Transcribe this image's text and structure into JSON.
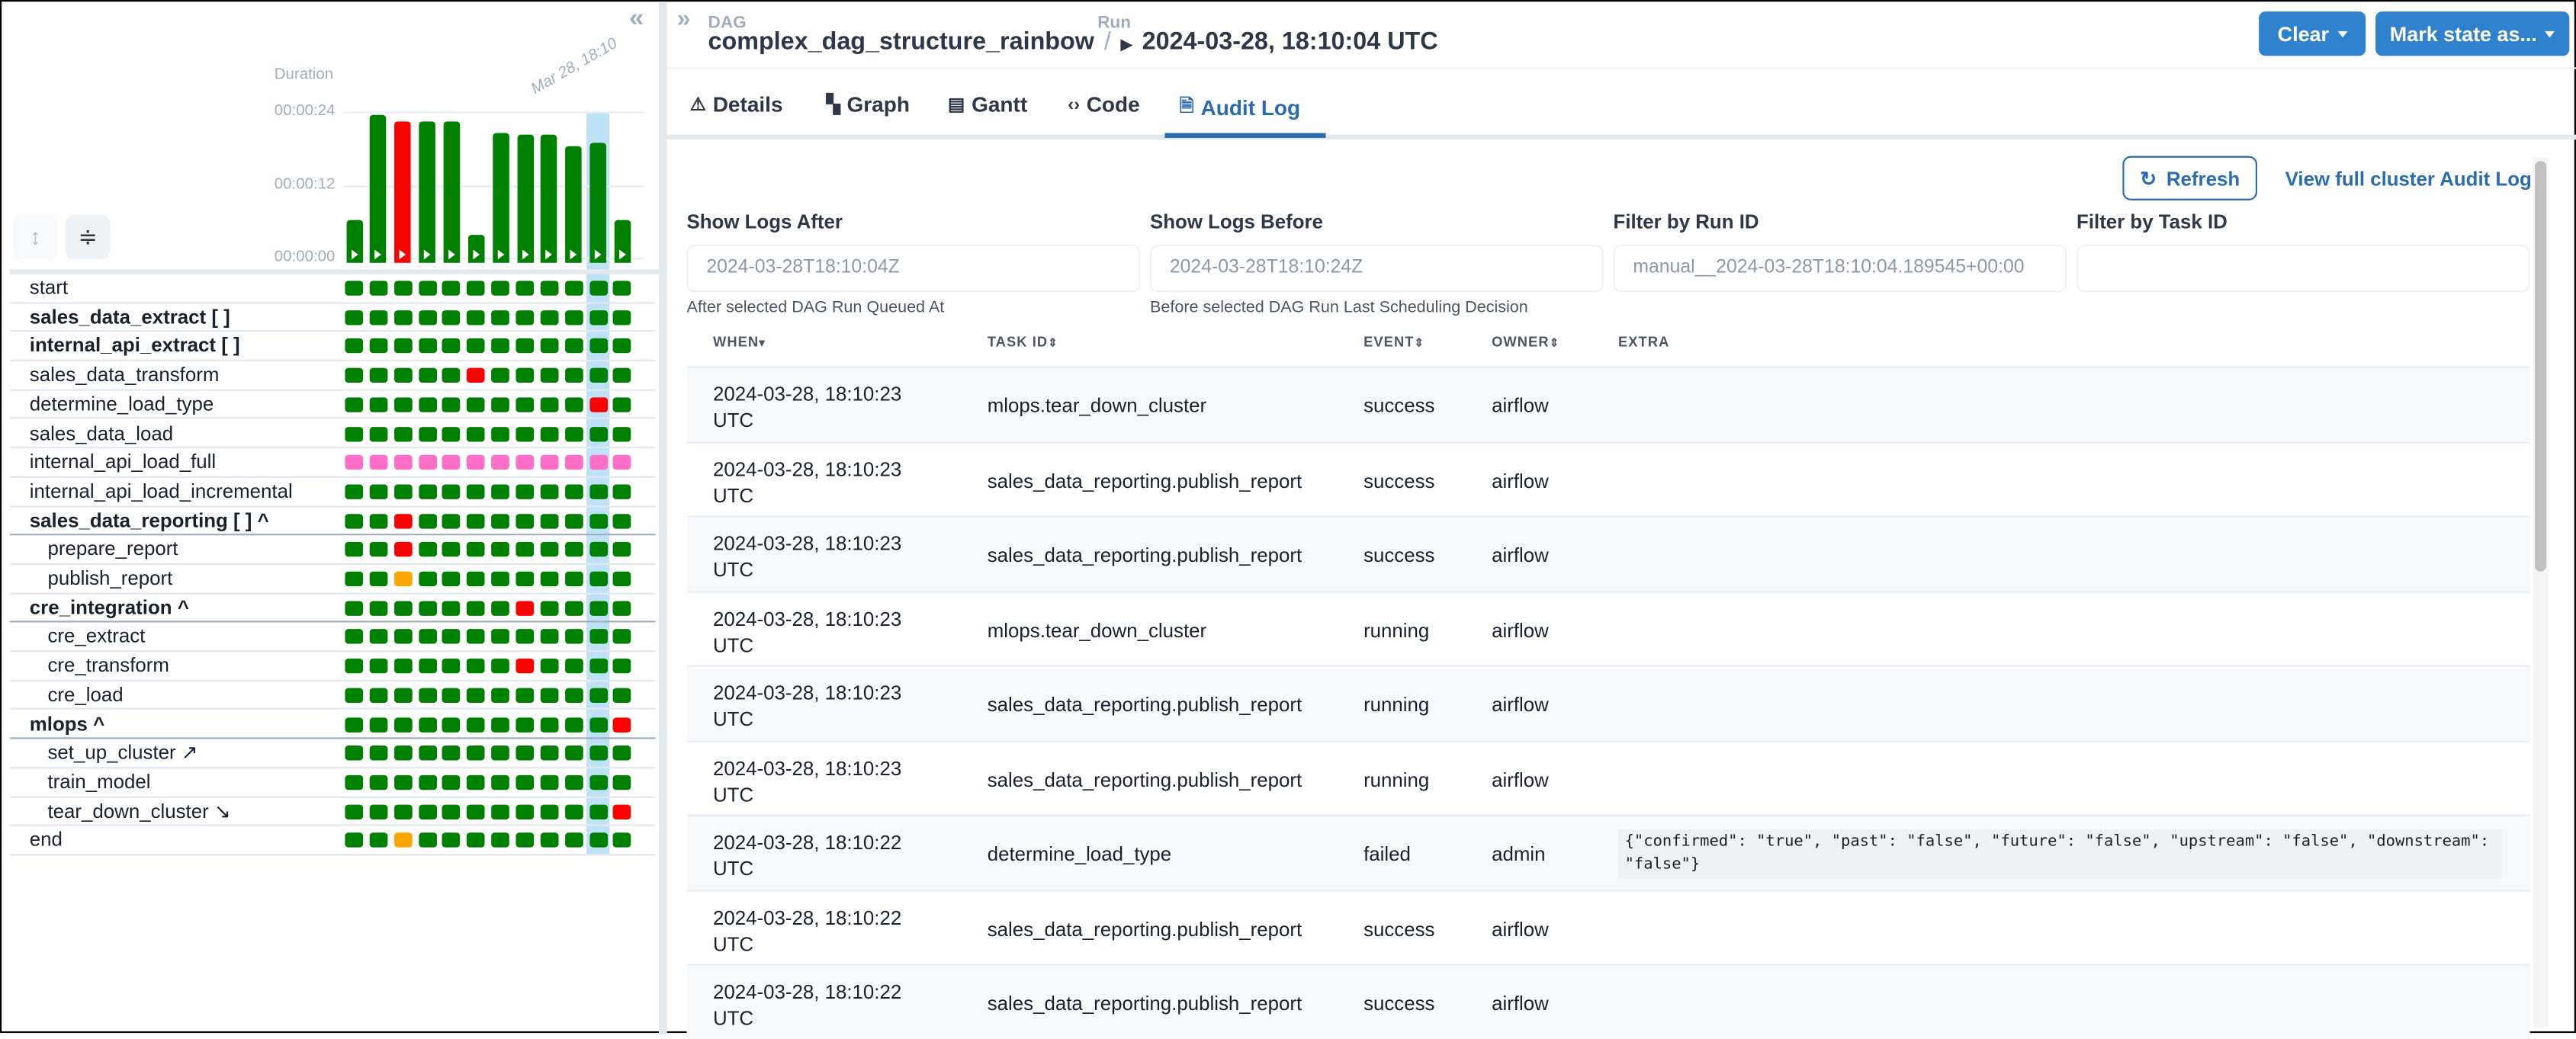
{
  "colors": {
    "success": "#008000",
    "failed": "#ff0000",
    "upstream_failed": "#ffa500",
    "skipped": "#ff6ec7",
    "accent": "#3182ce",
    "highlight": "#bee3f8"
  },
  "left_panel": {
    "collapse_icon": "double-chevron-left-icon",
    "chart_data": {
      "type": "bar",
      "ylabel": "Duration",
      "y_ticks": [
        "00:00:00",
        "00:00:12",
        "00:00:24"
      ],
      "ylim_seconds": [
        0,
        24
      ],
      "x_label_highlight": "Mar 28, 18:10",
      "values_seconds": [
        7,
        24.4,
        23.3,
        23.3,
        23.3,
        4.6,
        21.2,
        21.1,
        21,
        19.1,
        19.6,
        7
      ],
      "states": [
        "success",
        "success",
        "failed",
        "success",
        "success",
        "success",
        "success",
        "success",
        "success",
        "success",
        "success",
        "success"
      ],
      "selected_index": 10
    },
    "tasks": [
      {
        "label": "start",
        "kind": "task",
        "states": "GGGGGGGGGGGG"
      },
      {
        "label": "sales_data_extract [ ]",
        "kind": "group",
        "states": "GGGGGGGGGGGG"
      },
      {
        "label": "internal_api_extract [ ]",
        "kind": "group",
        "states": "GGGGGGGGGGGG"
      },
      {
        "label": "sales_data_transform",
        "kind": "task",
        "states": "GGGGGRGGGGGG"
      },
      {
        "label": "determine_load_type",
        "kind": "task",
        "states": "GGGGGGGGGGRG"
      },
      {
        "label": "sales_data_load",
        "kind": "task",
        "states": "GGGGGGGGGGGG"
      },
      {
        "label": "internal_api_load_full",
        "kind": "task",
        "states": "PPPPPPPPPPPP"
      },
      {
        "label": "internal_api_load_incremental",
        "kind": "task",
        "states": "GGGGGGGGGGGG"
      },
      {
        "label": "sales_data_reporting [ ] ^",
        "kind": "groupopen",
        "states": "GGRGGGGGGGGG"
      },
      {
        "label": "prepare_report",
        "kind": "child",
        "states": "GGRGGGGGGGGG"
      },
      {
        "label": "publish_report",
        "kind": "child",
        "states": "GGOGGGGGGGGG"
      },
      {
        "label": "cre_integration ^",
        "kind": "groupopen",
        "states": "GGGGGGGRGGGG"
      },
      {
        "label": "cre_extract",
        "kind": "child",
        "states": "GGGGGGGGGGGG"
      },
      {
        "label": "cre_transform",
        "kind": "child",
        "states": "GGGGGGGRGGGG"
      },
      {
        "label": "cre_load",
        "kind": "child",
        "states": "GGGGGGGGGGGG"
      },
      {
        "label": "mlops ^",
        "kind": "groupopen",
        "states": "GGGGGGGGGGGR"
      },
      {
        "label": "set_up_cluster ↗",
        "kind": "child",
        "states": "GGGGGGGGGGGG"
      },
      {
        "label": "train_model",
        "kind": "child",
        "states": "GGGGGGGGGGGG"
      },
      {
        "label": "tear_down_cluster ↘",
        "kind": "child",
        "states": "GGGGGGGGGGGR"
      },
      {
        "label": "end",
        "kind": "task",
        "states": "GGOGGGGGGGGG"
      }
    ]
  },
  "header": {
    "dag_label": "DAG",
    "dag_id": "complex_dag_structure_rainbow",
    "separator": "/",
    "run_label": "Run",
    "run_id": "2024-03-28, 18:10:04 UTC",
    "clear_button": "Clear",
    "mark_state_button": "Mark state as..."
  },
  "tabs": [
    {
      "label": "Details",
      "icon": "warning-triangle-icon"
    },
    {
      "label": "Graph",
      "icon": "graph-icon"
    },
    {
      "label": "Gantt",
      "icon": "gantt-icon"
    },
    {
      "label": "Code",
      "icon": "code-icon"
    },
    {
      "label": "Audit Log",
      "icon": "file-search-icon",
      "active": true
    }
  ],
  "audit": {
    "refresh_button": "Refresh",
    "full_log_link": "View full cluster Audit Log",
    "filters": [
      {
        "label": "Show Logs After",
        "placeholder": "2024-03-28T18:10:04Z",
        "help": "After selected DAG Run Queued At"
      },
      {
        "label": "Show Logs Before",
        "placeholder": "2024-03-28T18:10:24Z",
        "help": "Before selected DAG Run Last Scheduling Decision"
      },
      {
        "label": "Filter by Run ID",
        "placeholder": "manual__2024-03-28T18:10:04.189545+00:00",
        "help": ""
      },
      {
        "label": "Filter by Task ID",
        "placeholder": "",
        "help": ""
      }
    ],
    "columns": [
      "WHEN",
      "TASK ID",
      "EVENT",
      "OWNER",
      "EXTRA"
    ],
    "rows": [
      {
        "when": "2024-03-28, 18:10:23 UTC",
        "task": "mlops.tear_down_cluster",
        "event": "success",
        "owner": "airflow",
        "extra": ""
      },
      {
        "when": "2024-03-28, 18:10:23 UTC",
        "task": "sales_data_reporting.publish_report",
        "event": "success",
        "owner": "airflow",
        "extra": ""
      },
      {
        "when": "2024-03-28, 18:10:23 UTC",
        "task": "sales_data_reporting.publish_report",
        "event": "success",
        "owner": "airflow",
        "extra": ""
      },
      {
        "when": "2024-03-28, 18:10:23 UTC",
        "task": "mlops.tear_down_cluster",
        "event": "running",
        "owner": "airflow",
        "extra": ""
      },
      {
        "when": "2024-03-28, 18:10:23 UTC",
        "task": "sales_data_reporting.publish_report",
        "event": "running",
        "owner": "airflow",
        "extra": ""
      },
      {
        "when": "2024-03-28, 18:10:23 UTC",
        "task": "sales_data_reporting.publish_report",
        "event": "running",
        "owner": "airflow",
        "extra": ""
      },
      {
        "when": "2024-03-28, 18:10:22 UTC",
        "task": "determine_load_type",
        "event": "failed",
        "owner": "admin",
        "extra": "{\"confirmed\": \"true\", \"past\": \"false\", \"future\": \"false\", \"upstream\": \"false\", \"downstream\": \"false\"}"
      },
      {
        "when": "2024-03-28, 18:10:22 UTC",
        "task": "sales_data_reporting.publish_report",
        "event": "success",
        "owner": "airflow",
        "extra": ""
      },
      {
        "when": "2024-03-28, 18:10:22 UTC",
        "task": "sales_data_reporting.publish_report",
        "event": "success",
        "owner": "airflow",
        "extra": ""
      }
    ]
  }
}
